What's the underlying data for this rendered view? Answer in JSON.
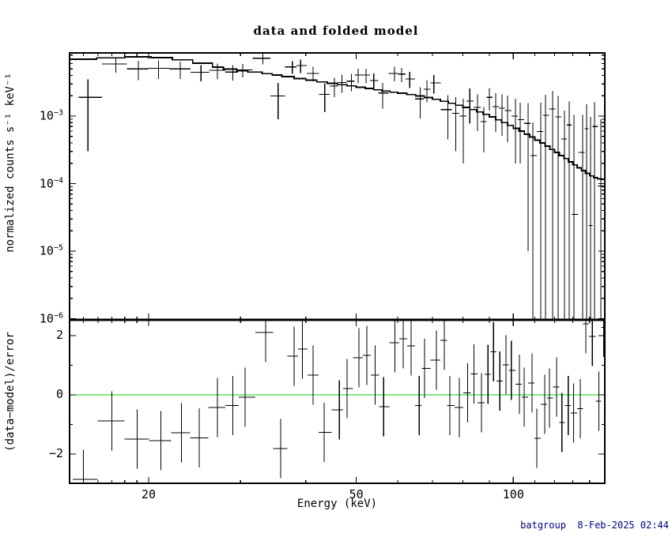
{
  "footer": {
    "text": "batgroup  8-Feb-2025 02:44",
    "color": "#000080"
  },
  "colors": {
    "background": "#ffffff",
    "data": "#000000",
    "model": "#000000",
    "zero_line": "#00D700",
    "frame": "#000000",
    "footer_text": "#000080"
  },
  "chart_data": [
    {
      "type": "scatter",
      "name": "spectrum-panel",
      "title": "data and folded model",
      "xlabel": "",
      "ylabel": "normalized counts s⁻¹ keV⁻¹",
      "xscale": "log",
      "yscale": "log",
      "xlim": [
        14.1,
        150
      ],
      "ylim": [
        9.6e-07,
        0.0086
      ],
      "grid": false,
      "legend": "none",
      "x_ticks_major": [
        {
          "v": 20,
          "label": "20"
        },
        {
          "v": 50,
          "label": "50"
        },
        {
          "v": 100,
          "label": "100"
        }
      ],
      "x_ticks_minor": [
        15,
        16,
        17,
        18,
        19,
        30,
        40,
        60,
        70,
        80,
        90,
        110,
        120,
        130,
        140,
        150
      ],
      "y_ticks_major": [
        {
          "v": 0.001,
          "base": "10",
          "exp": "−3"
        },
        {
          "v": 0.0001,
          "base": "10",
          "exp": "−4"
        },
        {
          "v": 1e-05,
          "base": "10",
          "exp": "−5"
        },
        {
          "v": 1e-06,
          "base": "10",
          "exp": "−6"
        }
      ],
      "first_bin_lo": 14.7,
      "points_format": "[energy_keV, value_counts_s_keV, sigma_error, lower_errorbar_reaches_bottom(0|1)]",
      "points": [
        [
          15.3,
          0.0019,
          0.0016,
          0
        ],
        [
          17.3,
          0.0059,
          0.0015,
          0
        ],
        [
          19.1,
          0.005,
          0.0016,
          0
        ],
        [
          20.9,
          0.0051,
          0.00155,
          0
        ],
        [
          23.0,
          0.005,
          0.00145,
          0
        ],
        [
          25.2,
          0.00445,
          0.0012,
          0
        ],
        [
          27.1,
          0.00475,
          0.00125,
          0
        ],
        [
          29.0,
          0.0045,
          0.00115,
          0
        ],
        [
          30.3,
          0.00485,
          0.0011,
          0
        ],
        [
          33.1,
          0.0072,
          0.0014,
          0
        ],
        [
          35.4,
          0.002,
          0.0011,
          0
        ],
        [
          37.7,
          0.00535,
          0.00115,
          0
        ],
        [
          39.1,
          0.0056,
          0.00125,
          0
        ],
        [
          41.3,
          0.0043,
          0.00105,
          0
        ],
        [
          43.5,
          0.0021,
          0.00095,
          0
        ],
        [
          45.4,
          0.0028,
          0.0009,
          0
        ],
        [
          46.9,
          0.00315,
          0.00095,
          0
        ],
        [
          48.9,
          0.0033,
          0.00095,
          0
        ],
        [
          50.4,
          0.00405,
          0.001,
          0
        ],
        [
          52.2,
          0.00405,
          0.001,
          0
        ],
        [
          54.0,
          0.00336,
          0.00095,
          0
        ],
        [
          56.2,
          0.0022,
          0.0009,
          0
        ],
        [
          59.2,
          0.0043,
          0.00105,
          0
        ],
        [
          61.1,
          0.0042,
          0.001,
          0
        ],
        [
          63.3,
          0.00355,
          0.00095,
          0
        ],
        [
          66.3,
          0.0018,
          0.00088,
          0
        ],
        [
          68.3,
          0.0025,
          0.0009,
          0
        ],
        [
          70.4,
          0.0031,
          0.00095,
          0
        ],
        [
          74.9,
          0.00125,
          0.0008,
          0
        ],
        [
          77.5,
          0.0011,
          0.0008,
          0
        ],
        [
          80.2,
          0.001,
          0.0008,
          0
        ],
        [
          82.5,
          0.00167,
          0.0009,
          0
        ],
        [
          85.4,
          0.00135,
          0.00075,
          0
        ],
        [
          87.8,
          0.00083,
          0.00054,
          0
        ],
        [
          90.0,
          0.0019,
          0.0007,
          0
        ],
        [
          92.5,
          0.00138,
          0.0008,
          0
        ],
        [
          95.1,
          0.00131,
          0.0008,
          0
        ],
        [
          97.5,
          0.00121,
          0.0008,
          0
        ],
        [
          100.9,
          0.001,
          0.0008,
          0
        ],
        [
          103.1,
          0.00089,
          0.00069,
          0
        ],
        [
          106.7,
          0.00078,
          0.00077,
          0
        ],
        [
          109.0,
          0.00026,
          0.00055,
          1
        ],
        [
          112.9,
          0.00059,
          0.001,
          1
        ],
        [
          115.2,
          0.00103,
          0.00105,
          1
        ],
        [
          118.9,
          0.00127,
          0.0011,
          1
        ],
        [
          121.8,
          0.00098,
          0.001,
          1
        ],
        [
          125.3,
          0.00046,
          0.00075,
          1
        ],
        [
          128.0,
          0.00074,
          0.0009,
          1
        ],
        [
          130.6,
          3.5e-05,
          0.001,
          1
        ],
        [
          135.8,
          0.00029,
          0.00075,
          1
        ],
        [
          138.1,
          0.00065,
          0.00085,
          1
        ],
        [
          140.6,
          2.4e-05,
          0.00095,
          1
        ],
        [
          143.0,
          0.0007,
          0.0009,
          1
        ],
        [
          147.1,
          9.2e-05,
          0.0008,
          1
        ]
      ],
      "model_steps_format": "[energy_keV_step_start, model_value]",
      "model_steps": [
        [
          14.1,
          0.00695
        ],
        [
          15.9,
          0.0073
        ],
        [
          18.0,
          0.00755
        ],
        [
          20.2,
          0.00735
        ],
        [
          22.2,
          0.0068
        ],
        [
          24.3,
          0.0061
        ],
        [
          26.5,
          0.0053
        ],
        [
          27.8,
          0.00495
        ],
        [
          29.5,
          0.0047
        ],
        [
          31.0,
          0.0045
        ],
        [
          33.0,
          0.00425
        ],
        [
          34.5,
          0.00405
        ],
        [
          36.0,
          0.00385
        ],
        [
          38.0,
          0.0036
        ],
        [
          40.0,
          0.0034
        ],
        [
          42.0,
          0.0032
        ],
        [
          44.0,
          0.00305
        ],
        [
          46.0,
          0.00292
        ],
        [
          48.0,
          0.0028
        ],
        [
          50.0,
          0.00268
        ],
        [
          52.0,
          0.00256
        ],
        [
          54.0,
          0.00245
        ],
        [
          56.0,
          0.00235
        ],
        [
          58.0,
          0.00226
        ],
        [
          60.0,
          0.00218
        ],
        [
          62.5,
          0.00208
        ],
        [
          65.0,
          0.00198
        ],
        [
          67.5,
          0.00188
        ],
        [
          70.0,
          0.00177
        ],
        [
          72.5,
          0.00166
        ],
        [
          75.0,
          0.00155
        ],
        [
          77.5,
          0.00145
        ],
        [
          80.0,
          0.00135
        ],
        [
          82.5,
          0.00125
        ],
        [
          85.0,
          0.00115
        ],
        [
          87.5,
          0.00106
        ],
        [
          90.0,
          0.00097
        ],
        [
          92.5,
          0.00088
        ],
        [
          95.0,
          0.0008
        ],
        [
          97.5,
          0.00073
        ],
        [
          100.0,
          0.00066
        ],
        [
          102.5,
          0.0006
        ],
        [
          105.0,
          0.00054
        ],
        [
          107.5,
          0.00049
        ],
        [
          110.0,
          0.00044
        ],
        [
          112.5,
          0.0004
        ],
        [
          115.0,
          0.00036
        ],
        [
          117.5,
          0.00032
        ],
        [
          120.0,
          0.00029
        ],
        [
          122.5,
          0.00026
        ],
        [
          125.0,
          0.000235
        ],
        [
          127.5,
          0.00021
        ],
        [
          130.0,
          0.00019
        ],
        [
          132.5,
          0.000172
        ],
        [
          135.0,
          0.000156
        ],
        [
          137.5,
          0.000142
        ],
        [
          140.0,
          0.00013
        ],
        [
          142.5,
          0.000122
        ],
        [
          145.0,
          0.000118
        ],
        [
          147.5,
          0.000116
        ],
        [
          150.0,
          0.000116
        ]
      ]
    },
    {
      "type": "scatter",
      "name": "residuals-panel",
      "title": "",
      "xlabel": "Energy (keV)",
      "ylabel": "(data−model)/error",
      "xscale": "log",
      "yscale": "linear",
      "xlim": [
        14.1,
        150
      ],
      "ylim": [
        -2.99,
        2.53
      ],
      "grid": false,
      "zero_line": 0,
      "error_bar_halfheight": 1.0,
      "y_ticks_major": [
        {
          "v": 2,
          "label": "2"
        },
        {
          "v": 0,
          "label": "0"
        },
        {
          "v": -2,
          "label": "−2"
        }
      ],
      "y_ticks_minor": [
        1,
        -1
      ],
      "first_bin_lo": 14.3,
      "points_format": "[energy_keV, residual_sigma]",
      "points": [
        [
          15.0,
          -2.85
        ],
        [
          17.0,
          -0.88
        ],
        [
          19.0,
          -1.49
        ],
        [
          21.1,
          -1.55
        ],
        [
          23.1,
          -1.28
        ],
        [
          25.0,
          -1.45
        ],
        [
          27.1,
          -0.42
        ],
        [
          29.0,
          -0.36
        ],
        [
          30.6,
          -0.08
        ],
        [
          33.5,
          2.11
        ],
        [
          35.8,
          -1.81
        ],
        [
          38.0,
          1.31
        ],
        [
          39.4,
          1.55
        ],
        [
          41.3,
          0.67
        ],
        [
          43.4,
          -1.27
        ],
        [
          46.4,
          -0.51
        ],
        [
          48.0,
          0.21
        ],
        [
          50.6,
          1.26
        ],
        [
          52.4,
          1.33
        ],
        [
          54.3,
          0.67
        ],
        [
          56.4,
          -0.4
        ],
        [
          59.3,
          1.76
        ],
        [
          61.5,
          1.89
        ],
        [
          63.7,
          1.65
        ],
        [
          66.0,
          -0.36
        ],
        [
          67.6,
          0.89
        ],
        [
          71.2,
          1.18
        ],
        [
          73.7,
          1.84
        ],
        [
          75.5,
          -0.36
        ],
        [
          78.8,
          -0.42
        ],
        [
          81.7,
          0.07
        ],
        [
          84.0,
          0.71
        ],
        [
          86.9,
          -0.27
        ],
        [
          89.4,
          0.69
        ],
        [
          91.6,
          1.45
        ],
        [
          94.2,
          0.47
        ],
        [
          96.8,
          1.01
        ],
        [
          99.1,
          0.83
        ],
        [
          102.7,
          0.36
        ],
        [
          104.9,
          -0.08
        ],
        [
          108.6,
          0.4
        ],
        [
          110.9,
          -1.47
        ],
        [
          114.8,
          -0.32
        ],
        [
          117.3,
          -0.11
        ],
        [
          121.0,
          0.27
        ],
        [
          123.9,
          -0.93
        ],
        [
          127.4,
          -0.36
        ],
        [
          130.5,
          -0.61
        ],
        [
          134.4,
          -0.47
        ],
        [
          137.7,
          2.4
        ],
        [
          141.7,
          1.98
        ],
        [
          145.9,
          -0.21
        ],
        [
          149.0,
          2.28
        ]
      ]
    }
  ]
}
